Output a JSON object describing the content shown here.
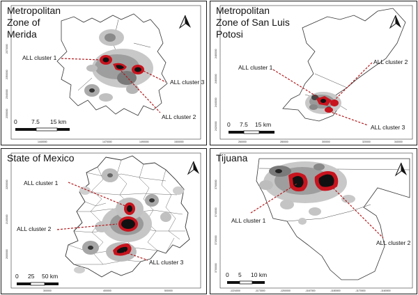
{
  "panels": [
    {
      "title": "Metropolitan\nZone of\nMerida",
      "labels": [
        "ALL cluster 1",
        "ALL cluster 3",
        "ALL cluster 2"
      ],
      "scale": [
        "0",
        "7.5",
        "15 km"
      ],
      "xticks": [
        "1440000",
        "1470000",
        "1490000",
        "1500000"
      ],
      "yticks": [
        "2370000",
        "2350000",
        "2340000",
        "2330000"
      ]
    },
    {
      "title": "Metropolitan\nZone of San Luis\nPotosi",
      "labels": [
        "ALL cluster 1",
        "ALL cluster 2",
        "ALL cluster 3"
      ],
      "scale": [
        "0",
        "7.5",
        "15 km"
      ],
      "xticks": [
        "260000",
        "280000",
        "300000",
        "320000",
        "340000"
      ],
      "yticks": [
        "2480000",
        "2460000",
        "2440000",
        "2420000"
      ]
    },
    {
      "title": "State of Mexico",
      "labels": [
        "ALL cluster 1",
        "ALL cluster 2",
        "ALL cluster 3"
      ],
      "scale": [
        "0",
        "25",
        "50 km"
      ],
      "xticks": [
        "300000",
        "400000",
        "500000"
      ],
      "yticks": [
        "2200000",
        "2100000",
        "2000000"
      ]
    },
    {
      "title": "Tijuana",
      "labels": [
        "ALL cluster 1",
        "ALL cluster 2"
      ],
      "scale": [
        "0",
        "5",
        "10 km"
      ],
      "xticks": [
        "-1224000",
        "-1173000",
        "-1200000",
        "-1167000",
        "-1180000",
        "-1170000",
        "-1160000"
      ],
      "yticks": [
        "3760000",
        "3740000",
        "3720000",
        "3700000"
      ]
    }
  ],
  "colors": {
    "cluster_outline": "#c8141e",
    "cluster_core": "#111111",
    "hotspot_light": "#b8b8b8",
    "hotspot_mid": "#8a8a8a",
    "leader": "#b2181c"
  },
  "icons": [
    "north-arrow-icon"
  ]
}
